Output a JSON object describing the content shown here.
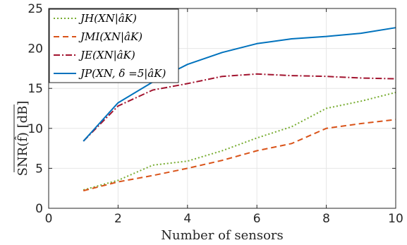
{
  "chart_data": {
    "type": "line",
    "xlabel": "Number of sensors",
    "ylabel": "SNR(f̂) [dB]",
    "xlim": [
      0,
      10
    ],
    "ylim": [
      0,
      25
    ],
    "xticks": [
      "0",
      "2",
      "4",
      "6",
      "8",
      "10"
    ],
    "yticks": [
      "0",
      "5",
      "10",
      "15",
      "20",
      "25"
    ],
    "grid": true,
    "legend_position": "top-left",
    "series": [
      {
        "name": "J_H(X_N|â_K)",
        "legend_label": "JH(XN|âK)",
        "color": "#77ac30",
        "style": "dotted",
        "x": [
          1,
          2,
          3,
          4,
          5,
          6,
          7,
          8,
          9,
          10
        ],
        "y": [
          2.3,
          3.5,
          5.4,
          5.9,
          7.2,
          8.8,
          10.2,
          12.5,
          13.4,
          14.5
        ]
      },
      {
        "name": "J_MI(X_N|â_K)",
        "legend_label": "JMI(XN|âK)",
        "color": "#d95319",
        "style": "dashed",
        "x": [
          1,
          2,
          3,
          4,
          5,
          6,
          7,
          8,
          9,
          10
        ],
        "y": [
          2.2,
          3.3,
          4.1,
          5.0,
          6.0,
          7.2,
          8.1,
          10.0,
          10.6,
          11.1
        ]
      },
      {
        "name": "J_E(X_N|â_K)",
        "legend_label": "JE(XN|âK)",
        "color": "#a2142f",
        "style": "dashdot",
        "x": [
          1,
          2,
          3,
          4,
          5,
          6,
          7,
          8,
          9,
          10
        ],
        "y": [
          8.4,
          12.8,
          14.8,
          15.6,
          16.5,
          16.8,
          16.6,
          16.5,
          16.3,
          16.2
        ]
      },
      {
        "name": "J_P(X_N, δ=5|â_K)",
        "legend_label": "JP(XN, δ =5|âK)",
        "color": "#0072bd",
        "style": "solid",
        "x": [
          1,
          2,
          3,
          4,
          5,
          6,
          7,
          8,
          9,
          10
        ],
        "y": [
          8.4,
          13.2,
          15.8,
          18.0,
          19.5,
          20.6,
          21.2,
          21.5,
          21.9,
          22.6
        ]
      }
    ]
  }
}
